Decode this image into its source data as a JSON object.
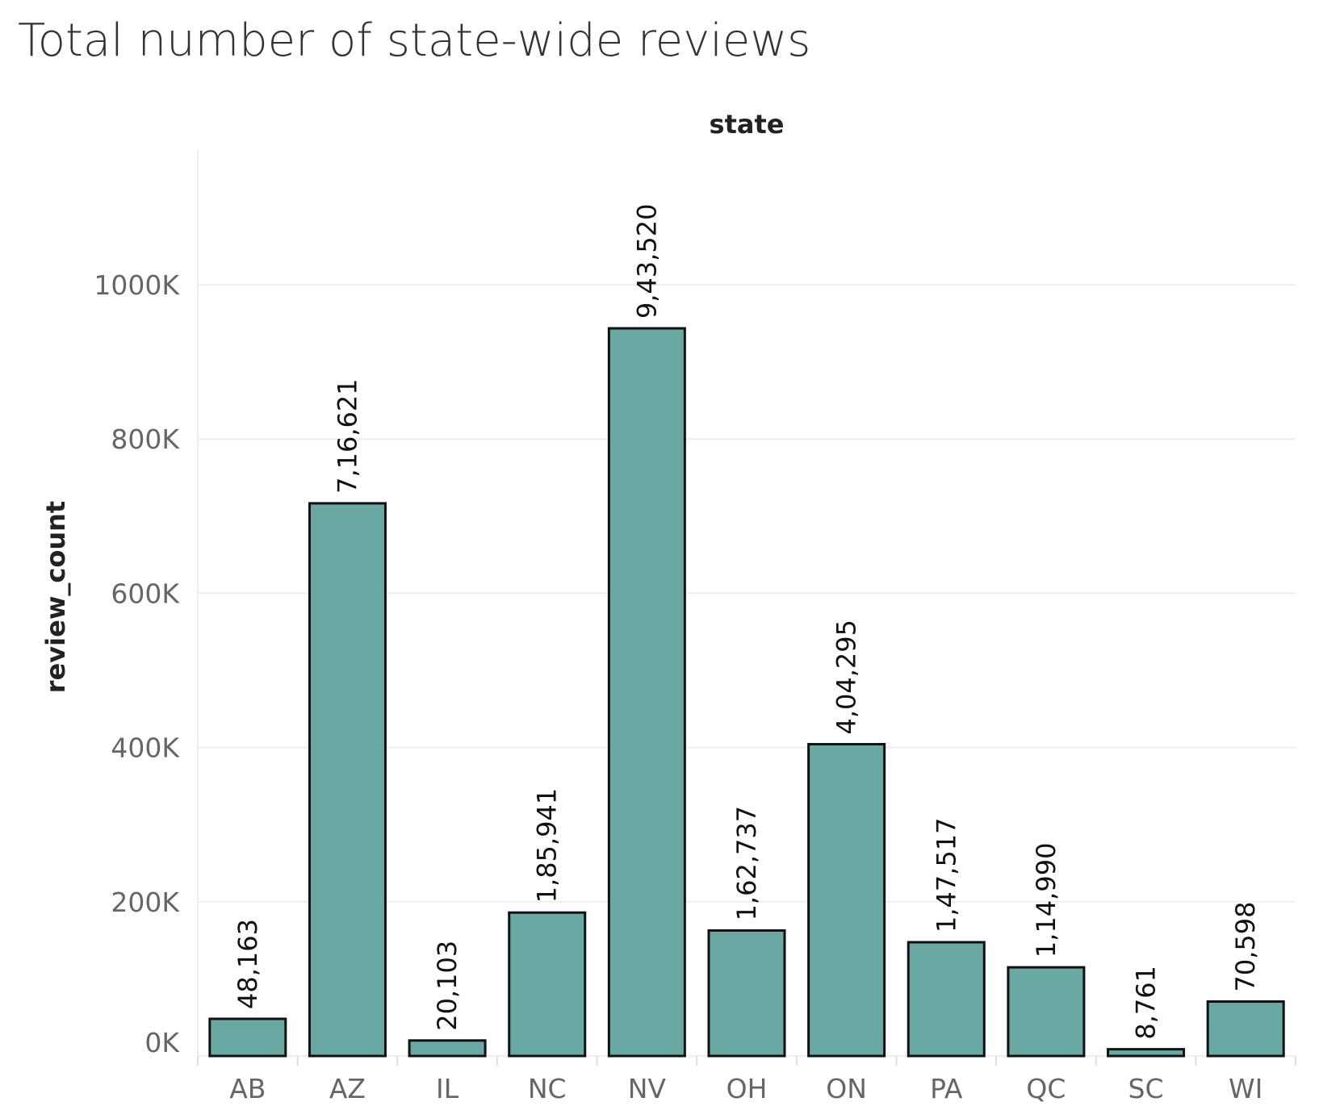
{
  "chart_data": {
    "type": "bar",
    "title": "Total number of state-wide reviews",
    "xlabel": "state",
    "ylabel": "review_count",
    "xlabel_position": "top",
    "categories": [
      "AB",
      "AZ",
      "IL",
      "NC",
      "NV",
      "OH",
      "ON",
      "PA",
      "QC",
      "SC",
      "WI"
    ],
    "values": [
      48163,
      716621,
      20103,
      185941,
      943520,
      162737,
      404295,
      147517,
      114990,
      8761,
      70598
    ],
    "data_labels": [
      "48,163",
      "7,16,621",
      "20,103",
      "1,85,941",
      "9,43,520",
      "1,62,737",
      "4,04,295",
      "1,47,517",
      "1,14,990",
      "8,761",
      "70,598"
    ],
    "yticks": [
      0,
      200000,
      400000,
      600000,
      800000,
      1000000
    ],
    "ytick_labels": [
      "0K",
      "200K",
      "400K",
      "600K",
      "800K",
      "1000K"
    ],
    "ylim": [
      0,
      1000000
    ],
    "grid": true,
    "colors": {
      "bar_fill": "#6aa9a3",
      "bar_stroke": "#111111",
      "grid": "#eeeeee"
    }
  }
}
